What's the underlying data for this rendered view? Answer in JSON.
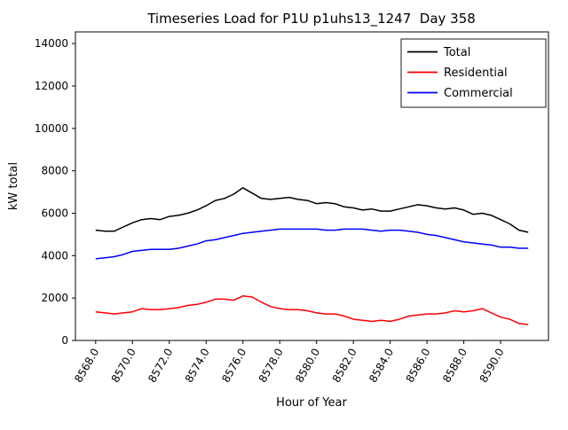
{
  "chart_data": {
    "type": "line",
    "title": "Timeseries Load for P1U p1uhs13_1247  Day 358",
    "xlabel": "Hour of Year",
    "ylabel": "kW total",
    "grid": false,
    "legend_position": "upper right",
    "xlim": [
      8566.9,
      8592.6
    ],
    "ylim": [
      0,
      14550
    ],
    "x_start": 8568.0,
    "x_step": 0.5,
    "x_ticks": [
      8568,
      8570,
      8572,
      8574,
      8576,
      8578,
      8580,
      8582,
      8584,
      8586,
      8588,
      8590
    ],
    "x_tick_labels": [
      "8568.0",
      "8570.0",
      "8572.0",
      "8574.0",
      "8576.0",
      "8578.0",
      "8580.0",
      "8582.0",
      "8584.0",
      "8586.0",
      "8588.0",
      "8590.0"
    ],
    "y_ticks": [
      0,
      2000,
      4000,
      6000,
      8000,
      10000,
      12000,
      14000
    ],
    "y_tick_labels": [
      "0",
      "2000",
      "4000",
      "6000",
      "8000",
      "10000",
      "12000",
      "14000"
    ],
    "series": [
      {
        "name": "Total",
        "color": "#000000",
        "values": [
          5200,
          5150,
          5150,
          5350,
          5550,
          5700,
          5750,
          5700,
          5850,
          5900,
          6000,
          6150,
          6350,
          6600,
          6700,
          6900,
          7200,
          6950,
          6700,
          6650,
          6700,
          6750,
          6650,
          6600,
          6450,
          6500,
          6450,
          6300,
          6250,
          6150,
          6200,
          6100,
          6100,
          6200,
          6300,
          6400,
          6350,
          6250,
          6200,
          6250,
          6150,
          5950,
          6000,
          5900,
          5700,
          5500,
          5200,
          5100
        ]
      },
      {
        "name": "Residential",
        "color": "#ff0000",
        "values": [
          1350,
          1300,
          1250,
          1300,
          1350,
          1500,
          1450,
          1450,
          1500,
          1550,
          1650,
          1700,
          1800,
          1950,
          1950,
          1900,
          2100,
          2050,
          1800,
          1600,
          1500,
          1450,
          1450,
          1400,
          1300,
          1250,
          1250,
          1150,
          1000,
          950,
          900,
          950,
          900,
          1000,
          1150,
          1200,
          1250,
          1250,
          1300,
          1400,
          1350,
          1400,
          1500,
          1300,
          1100,
          1000,
          800,
          750
        ]
      },
      {
        "name": "Commercial",
        "color": "#0000ff",
        "values": [
          3850,
          3900,
          3950,
          4050,
          4200,
          4250,
          4300,
          4300,
          4300,
          4350,
          4450,
          4550,
          4700,
          4750,
          4850,
          4950,
          5050,
          5100,
          5150,
          5200,
          5250,
          5250,
          5250,
          5250,
          5250,
          5200,
          5200,
          5250,
          5250,
          5250,
          5200,
          5150,
          5200,
          5200,
          5150,
          5100,
          5000,
          4950,
          4850,
          4750,
          4650,
          4600,
          4550,
          4500,
          4400,
          4400,
          4350,
          4350
        ]
      }
    ]
  }
}
